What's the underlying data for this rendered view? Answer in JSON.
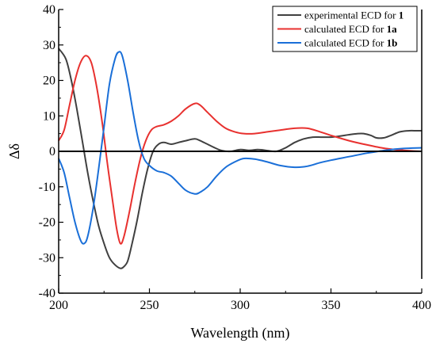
{
  "chart_data": {
    "type": "line",
    "title": "",
    "xlabel": "Wavelength (nm)",
    "ylabel": "Δδ",
    "xlim": [
      200,
      400
    ],
    "ylim": [
      -40,
      40
    ],
    "x_ticks": [
      200,
      250,
      300,
      350,
      400
    ],
    "y_ticks": [
      40,
      30,
      20,
      10,
      0,
      -10,
      -20,
      -30,
      -40
    ],
    "grid": false,
    "zero_line": true,
    "legend": {
      "position": "top-right",
      "entries": [
        {
          "text": "experimental ECD for ",
          "bold": "1",
          "color": "#404040"
        },
        {
          "text": "calculated ECD for ",
          "bold": "1a",
          "color": "#e8312f"
        },
        {
          "text": "calculated ECD for ",
          "bold": "1b",
          "color": "#1a6fd8"
        }
      ]
    },
    "series": [
      {
        "color": "#404040",
        "points": [
          [
            200,
            29
          ],
          [
            204,
            26
          ],
          [
            207,
            20
          ],
          [
            210,
            12
          ],
          [
            213,
            3
          ],
          [
            216,
            -6
          ],
          [
            219,
            -14
          ],
          [
            222,
            -21
          ],
          [
            225,
            -26
          ],
          [
            228,
            -30
          ],
          [
            231,
            -32
          ],
          [
            234,
            -33
          ],
          [
            236,
            -32.5
          ],
          [
            238,
            -31
          ],
          [
            240,
            -27
          ],
          [
            243,
            -20
          ],
          [
            246,
            -12
          ],
          [
            249,
            -5
          ],
          [
            252,
            0
          ],
          [
            255,
            2
          ],
          [
            258,
            2.5
          ],
          [
            262,
            2
          ],
          [
            266,
            2.5
          ],
          [
            270,
            3
          ],
          [
            275,
            3.5
          ],
          [
            278,
            3
          ],
          [
            282,
            2
          ],
          [
            286,
            1
          ],
          [
            290,
            0.2
          ],
          [
            295,
            0
          ],
          [
            300,
            0.5
          ],
          [
            305,
            0.3
          ],
          [
            310,
            0.5
          ],
          [
            315,
            0.2
          ],
          [
            320,
            0
          ],
          [
            325,
            1
          ],
          [
            330,
            2.5
          ],
          [
            335,
            3.5
          ],
          [
            340,
            4
          ],
          [
            345,
            4
          ],
          [
            350,
            4
          ],
          [
            355,
            4.3
          ],
          [
            360,
            4.7
          ],
          [
            365,
            5
          ],
          [
            368,
            5
          ],
          [
            372,
            4.5
          ],
          [
            375,
            3.8
          ],
          [
            379,
            3.8
          ],
          [
            383,
            4.5
          ],
          [
            388,
            5.5
          ],
          [
            393,
            5.8
          ],
          [
            397,
            5.8
          ],
          [
            400,
            5.8
          ]
        ]
      },
      {
        "color": "#e8312f",
        "points": [
          [
            200,
            3
          ],
          [
            203,
            6
          ],
          [
            206,
            13
          ],
          [
            209,
            20
          ],
          [
            212,
            25
          ],
          [
            215,
            27
          ],
          [
            218,
            25
          ],
          [
            221,
            18
          ],
          [
            224,
            8
          ],
          [
            227,
            -4
          ],
          [
            230,
            -15
          ],
          [
            232,
            -22
          ],
          [
            234,
            -26
          ],
          [
            236,
            -24
          ],
          [
            239,
            -17
          ],
          [
            242,
            -9
          ],
          [
            245,
            -2
          ],
          [
            248,
            3
          ],
          [
            251,
            6
          ],
          [
            254,
            7
          ],
          [
            258,
            7.5
          ],
          [
            262,
            8.5
          ],
          [
            266,
            10
          ],
          [
            270,
            12
          ],
          [
            275,
            13.5
          ],
          [
            278,
            13
          ],
          [
            282,
            11
          ],
          [
            287,
            8.5
          ],
          [
            292,
            6.5
          ],
          [
            297,
            5.5
          ],
          [
            302,
            5
          ],
          [
            308,
            5
          ],
          [
            315,
            5.5
          ],
          [
            322,
            6
          ],
          [
            330,
            6.5
          ],
          [
            337,
            6.5
          ],
          [
            344,
            5.5
          ],
          [
            350,
            4.5
          ],
          [
            360,
            3
          ],
          [
            370,
            1.8
          ],
          [
            380,
            0.8
          ],
          [
            390,
            0.3
          ],
          [
            400,
            0
          ]
        ]
      },
      {
        "color": "#1a6fd8",
        "points": [
          [
            200,
            -2
          ],
          [
            203,
            -6
          ],
          [
            206,
            -13
          ],
          [
            209,
            -20
          ],
          [
            212,
            -25
          ],
          [
            214,
            -26
          ],
          [
            216,
            -24
          ],
          [
            219,
            -16
          ],
          [
            222,
            -5
          ],
          [
            225,
            7
          ],
          [
            228,
            19
          ],
          [
            231,
            26
          ],
          [
            233,
            28
          ],
          [
            235,
            27
          ],
          [
            238,
            20
          ],
          [
            241,
            11
          ],
          [
            244,
            3
          ],
          [
            247,
            -2
          ],
          [
            250,
            -4
          ],
          [
            254,
            -5.5
          ],
          [
            258,
            -6
          ],
          [
            262,
            -7
          ],
          [
            266,
            -9
          ],
          [
            270,
            -11
          ],
          [
            275,
            -12
          ],
          [
            278,
            -11.5
          ],
          [
            282,
            -10
          ],
          [
            287,
            -7
          ],
          [
            292,
            -4.5
          ],
          [
            297,
            -3
          ],
          [
            302,
            -2
          ],
          [
            308,
            -2.2
          ],
          [
            315,
            -3
          ],
          [
            322,
            -4
          ],
          [
            330,
            -4.5
          ],
          [
            337,
            -4.2
          ],
          [
            344,
            -3.2
          ],
          [
            350,
            -2.5
          ],
          [
            360,
            -1.5
          ],
          [
            370,
            -0.5
          ],
          [
            380,
            0.3
          ],
          [
            390,
            0.8
          ],
          [
            400,
            1
          ]
        ]
      }
    ]
  }
}
